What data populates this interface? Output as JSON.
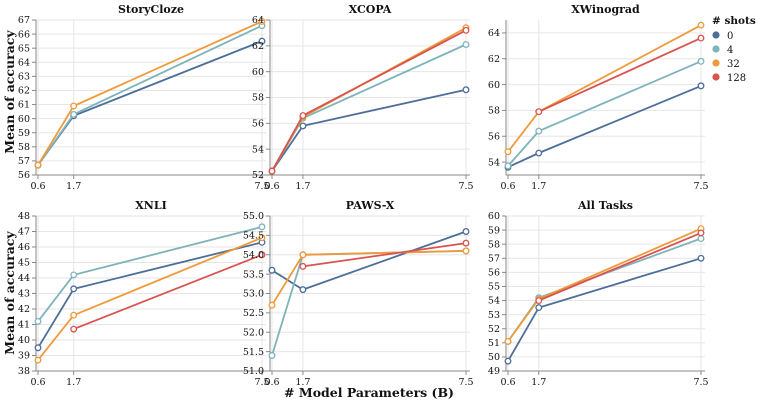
{
  "figure": {
    "ylabel": "Mean of accuracy",
    "xlabel": "# Model Parameters (B)"
  },
  "legend": {
    "title": "# shots",
    "items": [
      {
        "label": "0",
        "color": "#4c6e99"
      },
      {
        "label": "4",
        "color": "#7fb3bb"
      },
      {
        "label": "32",
        "color": "#ef9a3a"
      },
      {
        "label": "128",
        "color": "#d9534f"
      }
    ]
  },
  "chart_data": [
    {
      "type": "line",
      "title": "StoryCloze",
      "x": [
        "0.6",
        "1.7",
        "7.5"
      ],
      "yticks": [
        56,
        57,
        58,
        59,
        60,
        61,
        62,
        63,
        64,
        65,
        66,
        67
      ],
      "ylim": [
        56,
        67
      ],
      "series": [
        {
          "name": "0",
          "values": [
            56.7,
            60.2,
            65.5
          ]
        },
        {
          "name": "4",
          "values": [
            56.7,
            60.3,
            66.6
          ]
        },
        {
          "name": "32",
          "values": [
            56.7,
            60.9,
            66.9
          ]
        }
      ]
    },
    {
      "type": "line",
      "title": "XCOPA",
      "x": [
        "0.6",
        "1.7",
        "7.5"
      ],
      "yticks": [
        52,
        54,
        56,
        58,
        60,
        62,
        64
      ],
      "ylim": [
        52,
        64
      ],
      "series": [
        {
          "name": "0",
          "values": [
            52.3,
            55.8,
            58.6
          ]
        },
        {
          "name": "4",
          "values": [
            52.3,
            56.4,
            62.1
          ]
        },
        {
          "name": "32",
          "values": [
            52.3,
            56.5,
            63.4
          ]
        },
        {
          "name": "128",
          "values": [
            52.3,
            56.6,
            63.2
          ]
        }
      ]
    },
    {
      "type": "line",
      "title": "XWinograd",
      "x": [
        "0.6",
        "1.7",
        "7.5"
      ],
      "yticks": [
        54,
        56,
        58,
        60,
        62,
        64
      ],
      "ylim": [
        53,
        65
      ],
      "series": [
        {
          "name": "0",
          "values": [
            53.6,
            54.7,
            59.9
          ]
        },
        {
          "name": "4",
          "values": [
            53.7,
            56.4,
            61.8
          ]
        },
        {
          "name": "32",
          "values": [
            54.8,
            57.9,
            64.6
          ]
        },
        {
          "name": "128",
          "values": [
            null,
            57.9,
            63.6
          ]
        }
      ]
    },
    {
      "type": "line",
      "title": "XNLI",
      "x": [
        "0.6",
        "1.7",
        "7.5"
      ],
      "yticks": [
        38,
        39,
        40,
        41,
        42,
        43,
        44,
        45,
        46,
        47,
        48
      ],
      "ytick_labels": [
        "38",
        "39",
        "40",
        "41",
        "42",
        "43",
        "44",
        "45",
        "46",
        "47",
        "48"
      ],
      "ylim": [
        38,
        48
      ],
      "series": [
        {
          "name": "0",
          "values": [
            39.5,
            43.3,
            46.3
          ]
        },
        {
          "name": "4",
          "values": [
            41.2,
            44.2,
            47.3
          ]
        },
        {
          "name": "32",
          "values": [
            38.7,
            41.6,
            46.6
          ]
        },
        {
          "name": "128",
          "values": [
            null,
            40.7,
            45.5
          ]
        }
      ]
    },
    {
      "type": "line",
      "title": "PAWS-X",
      "x": [
        "0.6",
        "1.7",
        "7.5"
      ],
      "yticks": [
        51.0,
        51.5,
        52.0,
        52.5,
        53.0,
        53.5,
        54.0,
        54.5,
        55.0
      ],
      "ytick_labels": [
        "51.0",
        "51.5",
        "52.0",
        "52.5",
        "53.0",
        "53.5",
        "54.0",
        "54.5",
        "55.0"
      ],
      "ylim": [
        51,
        55
      ],
      "series": [
        {
          "name": "0",
          "values": [
            53.6,
            53.1,
            54.6
          ]
        },
        {
          "name": "4",
          "values": [
            51.4,
            54.0,
            54.1
          ]
        },
        {
          "name": "32",
          "values": [
            52.7,
            54.0,
            54.1
          ]
        },
        {
          "name": "128",
          "values": [
            null,
            53.7,
            54.3
          ]
        }
      ]
    },
    {
      "type": "line",
      "title": "All Tasks",
      "x": [
        "0.6",
        "1.7",
        "7.5"
      ],
      "yticks": [
        49,
        50,
        51,
        52,
        53,
        54,
        55,
        56,
        57,
        58,
        59,
        60
      ],
      "ylim": [
        49,
        60
      ],
      "series": [
        {
          "name": "0",
          "values": [
            49.7,
            53.5,
            57.0
          ]
        },
        {
          "name": "4",
          "values": [
            51.1,
            54.2,
            58.4
          ]
        },
        {
          "name": "32",
          "values": [
            51.1,
            54.1,
            59.1
          ]
        },
        {
          "name": "128",
          "values": [
            null,
            54.0,
            58.8
          ]
        }
      ]
    }
  ]
}
